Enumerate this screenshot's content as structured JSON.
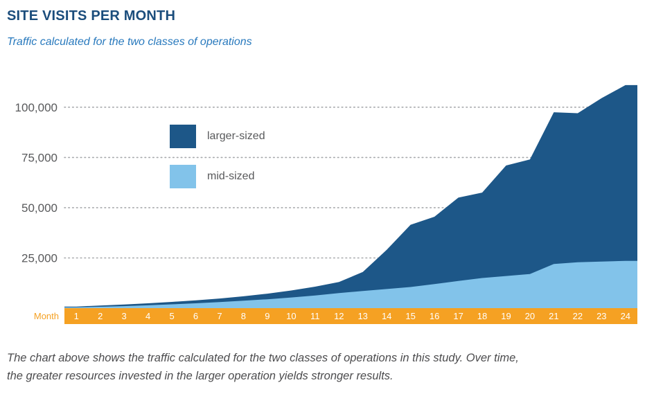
{
  "header": {
    "title": "SITE VISITS PER MONTH",
    "subtitle": "Traffic calculated for the two classes of operations"
  },
  "colors": {
    "title_navy": "#1b4d7c",
    "subtitle_blue": "#2879bd",
    "larger_sized_area": "#1d5788",
    "mid_sized_area": "#82c3ea",
    "axis_orange": "#f5a123",
    "tick_text_gray": "#58595b",
    "gridline_gray": "#a7a9ac"
  },
  "chart_data": {
    "type": "area",
    "title": "SITE VISITS PER MONTH",
    "subtitle": "Traffic calculated for the two classes of operations",
    "xlabel": "Month",
    "ylabel": "",
    "ylim": [
      0,
      112000
    ],
    "grid": "horizontal dotted",
    "legend_position": "inside upper-left",
    "categories": [
      "1",
      "2",
      "3",
      "4",
      "5",
      "6",
      "7",
      "8",
      "9",
      "10",
      "11",
      "12",
      "13",
      "14",
      "15",
      "16",
      "17",
      "18",
      "19",
      "20",
      "21",
      "22",
      "23",
      "24"
    ],
    "yticks": [
      {
        "value": 25000,
        "label": "25,000"
      },
      {
        "value": 50000,
        "label": "50,000"
      },
      {
        "value": 75000,
        "label": "75,000"
      },
      {
        "value": 100000,
        "label": "100,000"
      }
    ],
    "series": [
      {
        "name": "larger-sized",
        "color": "#1d5788",
        "values": [
          800,
          1300,
          1800,
          2400,
          3100,
          3900,
          4800,
          5900,
          7200,
          8800,
          10700,
          13000,
          18000,
          29000,
          41500,
          45500,
          55000,
          57500,
          71000,
          74000,
          97500,
          97000,
          104500,
          111000
        ]
      },
      {
        "name": "mid-sized",
        "color": "#82c3ea",
        "values": [
          400,
          700,
          1000,
          1400,
          1900,
          2400,
          3000,
          3700,
          4400,
          5300,
          6300,
          7500,
          8500,
          9500,
          10500,
          12000,
          13500,
          15000,
          16000,
          17000,
          22000,
          22800,
          23200,
          23500
        ]
      }
    ]
  },
  "legend": {
    "items": [
      {
        "label": "larger-sized"
      },
      {
        "label": "mid-sized"
      }
    ]
  },
  "caption": {
    "line1": "The chart above shows the traffic calculated for the two classes of operations in this study. Over time,",
    "line2": "the greater resources invested in the larger operation yields stronger results."
  }
}
